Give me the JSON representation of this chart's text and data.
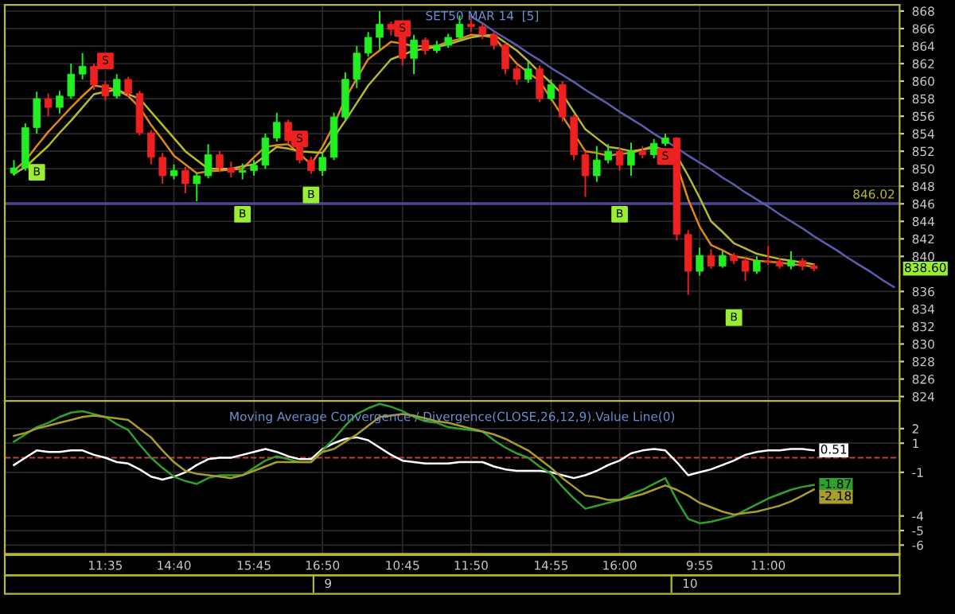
{
  "chart_data": [
    {
      "type": "candlestick",
      "title": "SET50 MAR 14  [5]",
      "categories": [
        null,
        null,
        null,
        null,
        null,
        null,
        null,
        null,
        null,
        null,
        null,
        null,
        null,
        null,
        null,
        null,
        null,
        null,
        null,
        null,
        null,
        null,
        null,
        null,
        null,
        null,
        null,
        null,
        null,
        null,
        null,
        null,
        null,
        null,
        null,
        null,
        null,
        null,
        null,
        null,
        null,
        null,
        null,
        null,
        null,
        null,
        null,
        null,
        null,
        null,
        null,
        null,
        null,
        null,
        null,
        null,
        null,
        null,
        null,
        null,
        null,
        null,
        null,
        null,
        null,
        null,
        null,
        null,
        null,
        null,
        null,
        null,
        null,
        null,
        null,
        null,
        null,
        null
      ],
      "ohlc": [
        [
          849.5,
          851.0,
          849.2,
          850.1
        ],
        [
          850.1,
          855.2,
          849.8,
          854.7
        ],
        [
          854.7,
          858.8,
          854.0,
          858.0
        ],
        [
          858.0,
          858.6,
          856.0,
          857.0
        ],
        [
          857.0,
          858.9,
          856.3,
          858.3
        ],
        [
          858.3,
          862.0,
          858.0,
          860.8
        ],
        [
          860.8,
          863.2,
          860.2,
          861.7
        ],
        [
          861.7,
          862.0,
          859.0,
          859.6
        ],
        [
          859.6,
          860.0,
          857.8,
          858.3
        ],
        [
          858.3,
          860.8,
          858.0,
          860.2
        ],
        [
          860.2,
          860.5,
          858.2,
          858.6
        ],
        [
          858.6,
          858.9,
          853.8,
          854.1
        ],
        [
          854.1,
          854.4,
          850.5,
          851.3
        ],
        [
          851.3,
          851.8,
          848.3,
          849.2
        ],
        [
          849.2,
          850.5,
          848.8,
          849.8
        ],
        [
          849.8,
          850.2,
          847.2,
          848.3
        ],
        [
          848.3,
          849.5,
          846.3,
          849.2
        ],
        [
          849.2,
          852.8,
          848.9,
          851.6
        ],
        [
          851.6,
          852.0,
          849.6,
          850.1
        ],
        [
          850.1,
          850.8,
          849.0,
          849.6
        ],
        [
          849.6,
          850.6,
          848.8,
          849.8
        ],
        [
          849.8,
          851.0,
          849.2,
          850.4
        ],
        [
          850.4,
          854.0,
          850.0,
          853.5
        ],
        [
          853.5,
          856.4,
          853.1,
          855.3
        ],
        [
          855.3,
          855.6,
          852.8,
          853.2
        ],
        [
          853.2,
          853.5,
          850.6,
          851.0
        ],
        [
          851.0,
          851.4,
          849.4,
          849.8
        ],
        [
          849.8,
          851.8,
          849.2,
          851.3
        ],
        [
          851.3,
          856.4,
          851.0,
          855.9
        ],
        [
          855.9,
          861.0,
          855.5,
          860.2
        ],
        [
          860.2,
          864.0,
          859.2,
          863.2
        ],
        [
          863.2,
          865.6,
          862.8,
          865.0
        ],
        [
          865.0,
          868.0,
          863.6,
          866.5
        ],
        [
          866.5,
          866.8,
          865.2,
          865.9
        ],
        [
          865.9,
          866.0,
          861.8,
          862.6
        ],
        [
          862.6,
          865.3,
          860.8,
          864.7
        ],
        [
          864.7,
          865.0,
          863.0,
          863.5
        ],
        [
          863.5,
          864.6,
          863.2,
          864.1
        ],
        [
          864.1,
          865.4,
          863.8,
          865.0
        ],
        [
          865.0,
          867.5,
          864.8,
          866.5
        ],
        [
          866.5,
          867.2,
          865.6,
          866.2
        ],
        [
          866.2,
          866.6,
          864.8,
          865.3
        ],
        [
          865.3,
          865.6,
          863.6,
          864.1
        ],
        [
          864.1,
          864.4,
          860.8,
          861.4
        ],
        [
          861.4,
          861.8,
          859.6,
          860.2
        ],
        [
          860.2,
          862.2,
          859.8,
          861.4
        ],
        [
          861.4,
          861.8,
          857.6,
          858.0
        ],
        [
          858.0,
          860.2,
          857.8,
          859.6
        ],
        [
          859.6,
          860.0,
          855.4,
          855.9
        ],
        [
          855.9,
          856.2,
          851.0,
          851.6
        ],
        [
          851.6,
          852.0,
          846.8,
          849.2
        ],
        [
          849.2,
          852.6,
          848.5,
          851.0
        ],
        [
          851.0,
          852.8,
          850.6,
          852.0
        ],
        [
          852.0,
          852.4,
          849.8,
          850.4
        ],
        [
          850.4,
          853.0,
          849.2,
          852.0
        ],
        [
          852.0,
          852.6,
          851.2,
          851.6
        ],
        [
          851.6,
          853.4,
          851.2,
          852.9
        ],
        [
          852.9,
          854.0,
          852.6,
          853.5
        ],
        [
          853.5,
          853.6,
          841.8,
          842.5
        ],
        [
          842.5,
          843.0,
          835.6,
          838.3
        ],
        [
          838.3,
          841.0,
          837.8,
          840.1
        ],
        [
          840.1,
          840.8,
          838.6,
          838.9
        ],
        [
          838.9,
          840.6,
          838.7,
          840.1
        ],
        [
          840.1,
          840.4,
          839.1,
          839.5
        ],
        [
          839.5,
          839.9,
          837.2,
          838.3
        ],
        [
          838.3,
          840.0,
          838.0,
          839.5
        ],
        [
          839.5,
          841.2,
          839.0,
          839.4
        ],
        [
          839.4,
          839.8,
          838.6,
          838.9
        ],
        [
          838.9,
          840.6,
          838.5,
          839.5
        ],
        [
          839.5,
          839.8,
          838.4,
          838.9
        ],
        [
          838.9,
          839.2,
          838.3,
          838.6
        ],
        null,
        null,
        null,
        null,
        null,
        null,
        null
      ],
      "series": [
        {
          "type": "line",
          "color": "#e0861a",
          "values": [
            849.8,
            850.9,
            852.6,
            854.2,
            855.6,
            857.0,
            858.3,
            859.5,
            859.3,
            859.0,
            858.3,
            857.0,
            855.0,
            853.3,
            851.5,
            850.5,
            849.5,
            849.7,
            849.8,
            849.9,
            850.0,
            851.3,
            852.5,
            852.7,
            852.8,
            851.7,
            850.5,
            852.5,
            855.0,
            858.0,
            860.3,
            862.5,
            863.5,
            864.5,
            864.3,
            864.0,
            864.0,
            864.0,
            864.5,
            864.8,
            865.3,
            865.2,
            865.0,
            863.5,
            862.0,
            861.0,
            860.0,
            858.0,
            856.0,
            854.0,
            852.0,
            851.8,
            851.5,
            851.7,
            851.8,
            852.2,
            852.6,
            852.0,
            850.5,
            846.5,
            843.4,
            841.3,
            840.7,
            840.0,
            839.8,
            839.5,
            839.4,
            839.3,
            839.1,
            839.0,
            838.8,
            null,
            null,
            null,
            null,
            null,
            null,
            null
          ]
        },
        {
          "type": "line",
          "color": "#b8b830",
          "values": [
            849.4,
            850.2,
            851.4,
            852.6,
            854.1,
            855.5,
            857.0,
            858.5,
            858.8,
            859.0,
            858.5,
            858.0,
            856.5,
            855.0,
            853.5,
            852.0,
            851.0,
            850.0,
            850.0,
            850.0,
            850.3,
            850.5,
            851.5,
            852.5,
            852.3,
            852.0,
            851.9,
            851.8,
            853.6,
            855.5,
            857.5,
            859.5,
            861.0,
            862.5,
            863.0,
            863.5,
            863.7,
            863.9,
            864.2,
            864.6,
            865.0,
            865.2,
            865.3,
            864.4,
            863.5,
            862.3,
            861.0,
            859.8,
            858.5,
            856.5,
            854.5,
            853.5,
            852.5,
            852.3,
            852.0,
            852.2,
            852.4,
            852.2,
            851.5,
            849.2,
            846.7,
            844.0,
            842.8,
            841.5,
            840.9,
            840.3,
            840.0,
            839.7,
            839.5,
            839.3,
            839.1,
            null,
            null,
            null,
            null,
            null,
            null,
            null
          ]
        },
        {
          "type": "line",
          "color": "#5c5cb0",
          "values": [
            null,
            null,
            null,
            null,
            null,
            null,
            null,
            null,
            null,
            null,
            null,
            null,
            null,
            null,
            null,
            null,
            null,
            null,
            null,
            null,
            null,
            null,
            null,
            null,
            null,
            null,
            null,
            null,
            null,
            null,
            null,
            null,
            null,
            null,
            null,
            null,
            null,
            null,
            null,
            null,
            867.4,
            866.6,
            865.7,
            864.9,
            864.1,
            863.2,
            862.4,
            861.5,
            860.7,
            859.9,
            859.0,
            858.2,
            857.4,
            856.5,
            855.7,
            854.9,
            854.0,
            853.2,
            852.4,
            851.5,
            850.7,
            849.9,
            849.0,
            848.2,
            847.3,
            846.5,
            845.7,
            844.8,
            844.0,
            843.2,
            842.3,
            841.5,
            840.7,
            839.8,
            839.0,
            838.2,
            837.3,
            836.5
          ]
        },
        {
          "type": "scatter",
          "color": "#99ee33",
          "marker": "square",
          "values": [
            null,
            null,
            849.6,
            null,
            null,
            null,
            null,
            null,
            null,
            null,
            null,
            null,
            null,
            null,
            null,
            null,
            null,
            null,
            null,
            null,
            844.8,
            null,
            null,
            null,
            null,
            null,
            847.0,
            null,
            null,
            null,
            null,
            null,
            null,
            null,
            null,
            null,
            null,
            null,
            null,
            null,
            null,
            null,
            null,
            null,
            null,
            null,
            null,
            null,
            null,
            null,
            null,
            null,
            null,
            844.8,
            null,
            null,
            null,
            null,
            null,
            null,
            null,
            null,
            null,
            833.0,
            null,
            null,
            null,
            null,
            null,
            null,
            null,
            null,
            null,
            null,
            null,
            null,
            null,
            null
          ],
          "value_labels": [
            null,
            null,
            "B",
            null,
            null,
            null,
            null,
            null,
            null,
            null,
            null,
            null,
            null,
            null,
            null,
            null,
            null,
            null,
            null,
            null,
            "B",
            null,
            null,
            null,
            null,
            null,
            "B",
            null,
            null,
            null,
            null,
            null,
            null,
            null,
            null,
            null,
            null,
            null,
            null,
            null,
            null,
            null,
            null,
            null,
            null,
            null,
            null,
            null,
            null,
            null,
            null,
            null,
            null,
            "B",
            null,
            null,
            null,
            null,
            null,
            null,
            null,
            null,
            null,
            "B",
            null,
            null,
            null,
            null,
            null,
            null,
            null,
            null,
            null,
            null,
            null,
            null,
            null,
            null
          ]
        },
        {
          "type": "scatter",
          "color": "#ee2020",
          "marker": "square",
          "values": [
            null,
            null,
            null,
            null,
            null,
            null,
            null,
            null,
            862.3,
            null,
            null,
            null,
            null,
            null,
            null,
            null,
            null,
            null,
            null,
            null,
            null,
            null,
            null,
            null,
            null,
            853.4,
            null,
            null,
            null,
            null,
            null,
            null,
            null,
            null,
            866.0,
            null,
            null,
            null,
            null,
            null,
            null,
            null,
            null,
            null,
            null,
            null,
            null,
            null,
            null,
            null,
            null,
            null,
            null,
            null,
            null,
            null,
            null,
            851.4,
            null,
            null,
            null,
            null,
            null,
            null,
            null,
            null,
            null,
            null,
            null,
            null,
            null,
            null,
            null,
            null,
            null,
            null,
            null,
            null
          ],
          "value_labels": [
            null,
            null,
            null,
            null,
            null,
            null,
            null,
            null,
            "S",
            null,
            null,
            null,
            null,
            null,
            null,
            null,
            null,
            null,
            null,
            null,
            null,
            null,
            null,
            null,
            null,
            "S",
            null,
            null,
            null,
            null,
            null,
            null,
            null,
            null,
            "S",
            null,
            null,
            null,
            null,
            null,
            null,
            null,
            null,
            null,
            null,
            null,
            null,
            null,
            null,
            null,
            null,
            null,
            null,
            null,
            null,
            null,
            null,
            "S",
            null,
            null,
            null,
            null,
            null,
            null,
            null,
            null,
            null,
            null,
            null,
            null,
            null,
            null,
            null,
            null,
            null,
            null,
            null,
            null
          ]
        }
      ],
      "ylim": [
        823.5,
        868.7
      ],
      "yticks": [
        824,
        826,
        828,
        830,
        832,
        834,
        836,
        840,
        842,
        844,
        846,
        848,
        850,
        852,
        854,
        856,
        858,
        860,
        862,
        864,
        866,
        868
      ],
      "ref_lines": [
        {
          "axis": "y",
          "value": 846.02,
          "label": "846.02",
          "color": "#4a4a90"
        }
      ],
      "annotations": [
        "838.60"
      ],
      "grid": true,
      "tick_labels": "y"
    },
    {
      "type": "line",
      "title": "Moving Average Convergence / Divergence(CLOSE,26,12,9).Value Line(0)",
      "categories": [
        null,
        null,
        null,
        null,
        null,
        null,
        null,
        null,
        "11:35",
        null,
        null,
        null,
        null,
        null,
        "14:40",
        null,
        null,
        null,
        null,
        null,
        null,
        "15:45",
        null,
        null,
        null,
        null,
        null,
        "16:50",
        null,
        null,
        null,
        null,
        null,
        null,
        "10:45",
        null,
        null,
        null,
        null,
        null,
        "11:50",
        null,
        null,
        null,
        null,
        null,
        null,
        "14:55",
        null,
        null,
        null,
        null,
        null,
        "16:00",
        null,
        null,
        null,
        null,
        null,
        null,
        "9:55",
        null,
        null,
        null,
        null,
        null,
        "11:00",
        null,
        null,
        null,
        null,
        null,
        null,
        null,
        null,
        null,
        null,
        null
      ],
      "series": [
        {
          "color": "#ffffff",
          "values": [
            -0.5,
            0.0,
            0.5,
            0.4,
            0.4,
            0.5,
            0.5,
            0.2,
            0.0,
            -0.3,
            -0.4,
            -0.8,
            -1.3,
            -1.5,
            -1.3,
            -1.0,
            -0.5,
            -0.1,
            0.0,
            0.0,
            0.2,
            0.4,
            0.6,
            0.4,
            0.1,
            -0.1,
            -0.1,
            0.6,
            1.0,
            1.3,
            1.4,
            1.2,
            0.7,
            0.2,
            -0.2,
            -0.3,
            -0.4,
            -0.4,
            -0.4,
            -0.3,
            -0.3,
            -0.3,
            -0.6,
            -0.8,
            -0.9,
            -0.9,
            -0.9,
            -1.0,
            -1.2,
            -1.4,
            -1.2,
            -0.9,
            -0.5,
            -0.2,
            0.3,
            0.5,
            0.6,
            0.5,
            -0.3,
            -1.2,
            -1.0,
            -0.8,
            -0.5,
            -0.2,
            0.2,
            0.4,
            0.5,
            0.5,
            0.6,
            0.6,
            0.51,
            null,
            null,
            null,
            null,
            null,
            null,
            null
          ],
          "value_labels": [
            null,
            null,
            null,
            null,
            null,
            null,
            null,
            null,
            null,
            null,
            null,
            null,
            null,
            null,
            null,
            null,
            null,
            null,
            null,
            null,
            null,
            null,
            null,
            null,
            null,
            null,
            null,
            null,
            null,
            null,
            null,
            null,
            null,
            null,
            null,
            null,
            null,
            null,
            null,
            null,
            null,
            null,
            null,
            null,
            null,
            null,
            null,
            null,
            null,
            null,
            null,
            null,
            null,
            null,
            null,
            null,
            null,
            null,
            null,
            null,
            null,
            null,
            null,
            null,
            null,
            null,
            null,
            null,
            null,
            null,
            "0.51",
            null,
            null,
            null,
            null,
            null,
            null,
            null
          ]
        },
        {
          "color": "#2fa02f",
          "values": [
            1.1,
            1.6,
            2.1,
            2.4,
            2.8,
            3.1,
            3.2,
            3.0,
            2.8,
            2.3,
            1.9,
            0.9,
            0.0,
            -0.7,
            -1.3,
            -1.6,
            -1.8,
            -1.4,
            -1.2,
            -1.2,
            -1.2,
            -0.7,
            -0.2,
            0.1,
            -0.1,
            -0.3,
            -0.3,
            0.5,
            1.3,
            2.2,
            3.0,
            3.4,
            3.7,
            3.5,
            3.2,
            2.8,
            2.5,
            2.4,
            2.1,
            2.0,
            1.9,
            1.8,
            1.2,
            0.7,
            0.3,
            0.0,
            -0.6,
            -1.1,
            -2.0,
            -2.8,
            -3.5,
            -3.3,
            -3.1,
            -2.9,
            -2.5,
            -2.2,
            -1.8,
            -1.4,
            -2.9,
            -4.2,
            -4.5,
            -4.4,
            -4.2,
            -4.0,
            -3.6,
            -3.2,
            -2.8,
            -2.5,
            -2.2,
            -2.0,
            -1.87,
            null,
            null,
            null,
            null,
            null,
            null,
            null
          ],
          "value_labels": [
            null,
            null,
            null,
            null,
            null,
            null,
            null,
            null,
            null,
            null,
            null,
            null,
            null,
            null,
            null,
            null,
            null,
            null,
            null,
            null,
            null,
            null,
            null,
            null,
            null,
            null,
            null,
            null,
            null,
            null,
            null,
            null,
            null,
            null,
            null,
            null,
            null,
            null,
            null,
            null,
            null,
            null,
            null,
            null,
            null,
            null,
            null,
            null,
            null,
            null,
            null,
            null,
            null,
            null,
            null,
            null,
            null,
            null,
            null,
            null,
            null,
            null,
            null,
            null,
            null,
            null,
            null,
            null,
            null,
            null,
            "-1.87",
            null,
            null,
            null,
            null,
            null,
            null,
            null
          ]
        },
        {
          "color": "#a89c2a",
          "values": [
            1.5,
            1.7,
            2.0,
            2.2,
            2.4,
            2.6,
            2.8,
            2.9,
            2.8,
            2.7,
            2.6,
            2.0,
            1.4,
            0.5,
            -0.3,
            -0.9,
            -1.1,
            -1.2,
            -1.3,
            -1.4,
            -1.2,
            -0.9,
            -0.6,
            -0.3,
            -0.3,
            -0.3,
            -0.3,
            0.4,
            0.6,
            1.1,
            1.6,
            2.2,
            2.8,
            2.9,
            3.0,
            2.9,
            2.7,
            2.5,
            2.4,
            2.2,
            2.0,
            1.8,
            1.6,
            1.3,
            0.9,
            0.5,
            -0.1,
            -0.7,
            -1.4,
            -2.0,
            -2.6,
            -2.7,
            -2.9,
            -2.9,
            -2.7,
            -2.5,
            -2.2,
            -1.9,
            -2.2,
            -2.6,
            -3.1,
            -3.4,
            -3.7,
            -3.9,
            -3.8,
            -3.7,
            -3.5,
            -3.3,
            -3.0,
            -2.6,
            -2.18,
            null,
            null,
            null,
            null,
            null,
            null,
            null
          ],
          "value_labels": [
            null,
            null,
            null,
            null,
            null,
            null,
            null,
            null,
            null,
            null,
            null,
            null,
            null,
            null,
            null,
            null,
            null,
            null,
            null,
            null,
            null,
            null,
            null,
            null,
            null,
            null,
            null,
            null,
            null,
            null,
            null,
            null,
            null,
            null,
            null,
            null,
            null,
            null,
            null,
            null,
            null,
            null,
            null,
            null,
            null,
            null,
            null,
            null,
            null,
            null,
            null,
            null,
            null,
            null,
            null,
            null,
            null,
            null,
            null,
            null,
            null,
            null,
            null,
            null,
            null,
            null,
            null,
            null,
            null,
            null,
            "-2.18",
            null,
            null,
            null,
            null,
            null,
            null,
            null
          ]
        }
      ],
      "ylim": [
        -6.6,
        3.9
      ],
      "yticks": [
        2,
        1,
        -1,
        -4,
        -5,
        -6
      ],
      "ref_lines": [
        {
          "axis": "y",
          "value": 0,
          "color": "#c04040",
          "line_style": "dashed"
        }
      ],
      "annotations": [
        "9",
        "10"
      ],
      "grid": true
    }
  ]
}
